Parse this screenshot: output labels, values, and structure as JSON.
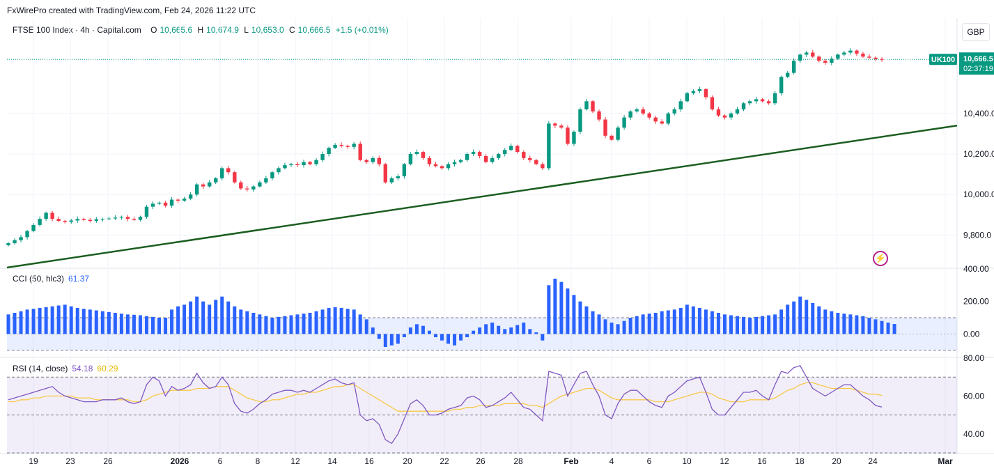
{
  "header": {
    "attribution": "FxWirePro created with TradingView.com, Feb 24, 2026 11:22 UTC",
    "symbol": "FTSE 100 Index · 4h · Capital.com",
    "o_label": "O",
    "o_value": "10,665.6",
    "h_label": "H",
    "h_value": "10,674.9",
    "l_label": "L",
    "l_value": "10,653.0",
    "c_label": "C",
    "c_value": "10,666.5",
    "change": "+1.5 (+0.01%)",
    "currency": "GBP"
  },
  "price_tag": {
    "symbol": "UK100",
    "price": "10,666.5",
    "countdown": "02:37:19",
    "color": "#089981"
  },
  "indicators": {
    "cci": {
      "name": "CCI (50, hlc3)",
      "value": "61.37",
      "color": "#2962ff"
    },
    "rsi": {
      "name": "RSI (14, close)",
      "value": "54.18",
      "ma_value": "60.29",
      "color": "#7e57c2",
      "ma_color": "#f7c948"
    }
  },
  "colors": {
    "up": "#089981",
    "down": "#f23645",
    "trendline": "#1b5e20",
    "grid": "#f0f3fa"
  },
  "chart_data": [
    {
      "type": "candlestick",
      "title": "FTSE 100 Index · 4h · Capital.com",
      "x_tick_labels": [
        "19",
        "23",
        "26",
        "2026",
        "6",
        "8",
        "12",
        "14",
        "16",
        "20",
        "22",
        "26",
        "28",
        "Feb",
        "4",
        "6",
        "10",
        "12",
        "16",
        "18",
        "20",
        "24",
        "Mar"
      ],
      "y_tick_labels": [
        "10,400.0",
        "10,200.0",
        "10,000.0",
        "9,800.0"
      ],
      "ylim": [
        9640,
        10870
      ],
      "closes": [
        9760,
        9775,
        9790,
        9820,
        9850,
        9880,
        9910,
        9880,
        9870,
        9865,
        9872,
        9880,
        9875,
        9870,
        9878,
        9880,
        9882,
        9886,
        9890,
        9880,
        9875,
        9890,
        9940,
        9955,
        9960,
        9945,
        9975,
        9970,
        9980,
        10000,
        10050,
        10040,
        10060,
        10080,
        10130,
        10110,
        10060,
        10030,
        10025,
        10040,
        10060,
        10080,
        10110,
        10130,
        10145,
        10150,
        10145,
        10160,
        10150,
        10170,
        10200,
        10230,
        10245,
        10240,
        10235,
        10250,
        10170,
        10160,
        10180,
        10150,
        10060,
        10080,
        10090,
        10150,
        10200,
        10210,
        10180,
        10150,
        10140,
        10130,
        10150,
        10160,
        10170,
        10200,
        10210,
        10190,
        10160,
        10180,
        10200,
        10220,
        10240,
        10210,
        10180,
        10170,
        10150,
        10130,
        10350,
        10340,
        10330,
        10250,
        10310,
        10420,
        10460,
        10410,
        10370,
        10290,
        10270,
        10330,
        10380,
        10410,
        10420,
        10400,
        10380,
        10360,
        10350,
        10400,
        10420,
        10460,
        10500,
        10510,
        10520,
        10480,
        10420,
        10390,
        10380,
        10400,
        10420,
        10450,
        10460,
        10470,
        10460,
        10450,
        10500,
        10580,
        10600,
        10660,
        10690,
        10700,
        10680,
        10660,
        10650,
        10670,
        10690,
        10700,
        10710,
        10695,
        10680,
        10675,
        10668,
        10666.5
      ],
      "current_price": 10666.5,
      "trendline": {
        "start": 9640,
        "end": 10340
      }
    },
    {
      "type": "bar",
      "title": "CCI (50, hlc3)",
      "y_tick_labels": [
        "400.00",
        "200.00",
        "0.00"
      ],
      "ylim": [
        -140,
        400
      ],
      "bands": [
        100,
        -100
      ],
      "values": [
        120,
        130,
        140,
        150,
        155,
        160,
        165,
        170,
        175,
        180,
        170,
        160,
        155,
        150,
        145,
        140,
        135,
        130,
        125,
        120,
        118,
        115,
        110,
        105,
        100,
        100,
        150,
        170,
        180,
        200,
        230,
        200,
        180,
        210,
        230,
        200,
        170,
        150,
        140,
        130,
        120,
        110,
        100,
        105,
        110,
        115,
        120,
        125,
        130,
        140,
        150,
        160,
        165,
        160,
        155,
        150,
        120,
        90,
        40,
        -30,
        -80,
        -70,
        -60,
        -20,
        40,
        60,
        50,
        20,
        -20,
        -40,
        -60,
        -70,
        -40,
        -20,
        20,
        40,
        60,
        70,
        50,
        30,
        40,
        55,
        70,
        30,
        10,
        -40,
        300,
        340,
        320,
        280,
        240,
        200,
        170,
        140,
        120,
        90,
        70,
        60,
        80,
        100,
        110,
        120,
        125,
        130,
        140,
        145,
        150,
        160,
        180,
        170,
        160,
        150,
        140,
        130,
        120,
        115,
        110,
        105,
        100,
        105,
        110,
        115,
        120,
        150,
        180,
        200,
        230,
        210,
        190,
        170,
        150,
        140,
        130,
        125,
        120,
        115,
        110,
        100,
        90,
        80,
        70,
        61.37
      ]
    },
    {
      "type": "line",
      "title": "RSI (14, close)",
      "y_tick_labels": [
        "80.00",
        "60.00",
        "40.00"
      ],
      "ylim": [
        30,
        80
      ],
      "bands": [
        70,
        50
      ],
      "series": [
        {
          "name": "RSI",
          "values": [
            58,
            59,
            60,
            61,
            62,
            63,
            64,
            65,
            62,
            60,
            59,
            58,
            57,
            57,
            57,
            58,
            58,
            58,
            59,
            57,
            56,
            57,
            66,
            70,
            68,
            60,
            65,
            63,
            64,
            66,
            72,
            67,
            64,
            65,
            70,
            66,
            56,
            52,
            51,
            53,
            56,
            58,
            61,
            62,
            63,
            63,
            62,
            63,
            62,
            64,
            66,
            68,
            69,
            67,
            66,
            67,
            50,
            47,
            48,
            45,
            37,
            35,
            40,
            48,
            56,
            58,
            55,
            50,
            50,
            51,
            53,
            54,
            55,
            59,
            60,
            58,
            54,
            55,
            57,
            59,
            62,
            58,
            54,
            53,
            50,
            47,
            73,
            72,
            71,
            60,
            66,
            72,
            73,
            66,
            60,
            50,
            48,
            56,
            61,
            63,
            63,
            60,
            57,
            55,
            54,
            60,
            62,
            65,
            68,
            69,
            70,
            62,
            53,
            50,
            50,
            54,
            58,
            62,
            62,
            63,
            60,
            58,
            66,
            73,
            72,
            75,
            76,
            70,
            64,
            62,
            60,
            62,
            64,
            66,
            66,
            63,
            60,
            58,
            55,
            54.18
          ]
        },
        {
          "name": "RSI MA",
          "values": [
            57,
            57,
            58,
            58,
            59,
            59,
            60,
            60,
            60,
            60,
            60,
            59,
            59,
            59,
            58,
            58,
            58,
            58,
            58,
            58,
            57,
            57,
            58,
            60,
            61,
            62,
            63,
            63,
            63,
            63,
            64,
            64,
            64,
            65,
            65,
            65,
            63,
            61,
            59,
            58,
            57,
            57,
            58,
            58,
            59,
            60,
            61,
            61,
            62,
            62,
            63,
            64,
            65,
            65,
            66,
            66,
            64,
            62,
            60,
            58,
            56,
            54,
            52,
            52,
            52,
            52,
            52,
            52,
            52,
            52,
            52,
            53,
            53,
            54,
            54,
            55,
            55,
            55,
            55,
            56,
            56,
            56,
            56,
            55,
            55,
            54,
            56,
            58,
            60,
            61,
            62,
            63,
            64,
            64,
            63,
            61,
            59,
            58,
            58,
            58,
            58,
            58,
            58,
            57,
            57,
            57,
            58,
            59,
            60,
            61,
            62,
            62,
            61,
            59,
            58,
            57,
            57,
            57,
            58,
            58,
            58,
            58,
            59,
            61,
            63,
            64,
            66,
            67,
            67,
            66,
            65,
            64,
            64,
            64,
            64,
            63,
            62,
            61,
            61,
            60.29
          ]
        }
      ]
    }
  ]
}
